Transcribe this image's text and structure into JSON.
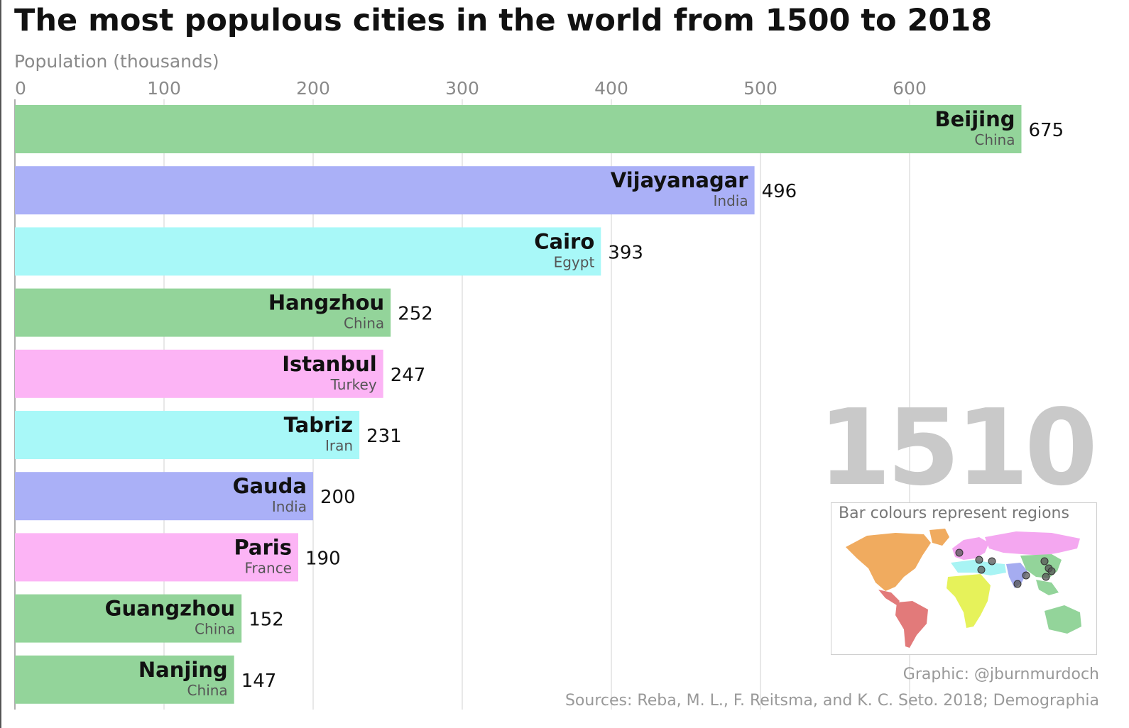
{
  "header": {
    "title": "The most populous cities in the world from 1500 to 2018",
    "subtitle": "Population (thousands)"
  },
  "year": "1510",
  "legend": {
    "title": "Bar colours represent regions",
    "map_icon": "world-map-icon"
  },
  "footer": {
    "credit": "Graphic: @jburnmurdoch",
    "sources": "Sources: Reba, M. L., F. Reitsma, and K. C. Seto. 2018; Demographia"
  },
  "colors": {
    "east_asia": "#93d49a",
    "south_asia": "#aab0f7",
    "middle_east": "#a8f8f8",
    "europe": "#fcb4f5",
    "grid": "#e0e0e0",
    "year": "#c9c9c9"
  },
  "chart_data": {
    "type": "bar",
    "orientation": "horizontal",
    "title": "The most populous cities in the world from 1500 to 2018",
    "xlabel": "Population (thousands)",
    "xlim": [
      0,
      675
    ],
    "ticks": [
      0,
      100,
      200,
      300,
      400,
      500,
      600
    ],
    "grid": true,
    "bars": [
      {
        "city": "Beijing",
        "country": "China",
        "value": 675,
        "region": "east_asia"
      },
      {
        "city": "Vijayanagar",
        "country": "India",
        "value": 496,
        "region": "south_asia"
      },
      {
        "city": "Cairo",
        "country": "Egypt",
        "value": 393,
        "region": "middle_east"
      },
      {
        "city": "Hangzhou",
        "country": "China",
        "value": 252,
        "region": "east_asia"
      },
      {
        "city": "Istanbul",
        "country": "Turkey",
        "value": 247,
        "region": "europe"
      },
      {
        "city": "Tabriz",
        "country": "Iran",
        "value": 231,
        "region": "middle_east"
      },
      {
        "city": "Gauda",
        "country": "India",
        "value": 200,
        "region": "south_asia"
      },
      {
        "city": "Paris",
        "country": "France",
        "value": 190,
        "region": "europe"
      },
      {
        "city": "Guangzhou",
        "country": "China",
        "value": 152,
        "region": "east_asia"
      },
      {
        "city": "Nanjing",
        "country": "China",
        "value": 147,
        "region": "east_asia"
      }
    ]
  }
}
